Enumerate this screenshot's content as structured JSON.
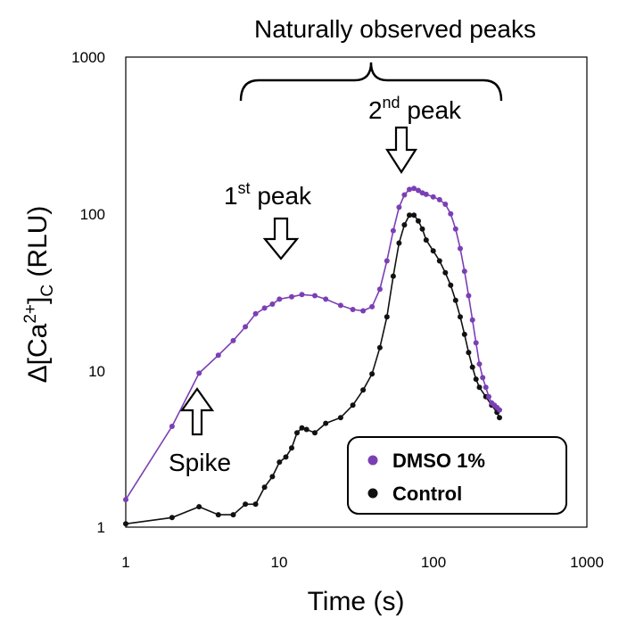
{
  "chart_data": {
    "type": "scatter",
    "title": "",
    "xlabel": "Time (s)",
    "ylabel": "Δ[Ca2+]C (RLU)",
    "ylabel_parts": {
      "delta_bracket": "Δ[Ca",
      "sup": "2+",
      "close": "]",
      "sub": "C",
      "unit": " (RLU)"
    },
    "xscale": "log",
    "yscale": "log",
    "xlim": [
      1,
      1000
    ],
    "ylim": [
      1,
      1000
    ],
    "x_ticks": [
      "1",
      "10",
      "100",
      "1000"
    ],
    "y_ticks": [
      "1",
      "10",
      "100",
      "1000"
    ],
    "grid": false,
    "legend_position": "bottom-right",
    "series": [
      {
        "name": "DMSO 1%",
        "color": "#7b3fb5",
        "points": [
          [
            1,
            1.5
          ],
          [
            2,
            4.4
          ],
          [
            3,
            9.6
          ],
          [
            4,
            12.5
          ],
          [
            5,
            15.5
          ],
          [
            6,
            19
          ],
          [
            7,
            23
          ],
          [
            8,
            25
          ],
          [
            9,
            26.5
          ],
          [
            10,
            28.5
          ],
          [
            12,
            29.5
          ],
          [
            14,
            30.5
          ],
          [
            17,
            30
          ],
          [
            20,
            28.5
          ],
          [
            25,
            26
          ],
          [
            30,
            24.5
          ],
          [
            35,
            24
          ],
          [
            40,
            25.5
          ],
          [
            45,
            33
          ],
          [
            50,
            50
          ],
          [
            55,
            78
          ],
          [
            60,
            110
          ],
          [
            65,
            132
          ],
          [
            70,
            143
          ],
          [
            75,
            145
          ],
          [
            80,
            141
          ],
          [
            85,
            136
          ],
          [
            90,
            133
          ],
          [
            100,
            128
          ],
          [
            110,
            123
          ],
          [
            120,
            115
          ],
          [
            130,
            100
          ],
          [
            140,
            80
          ],
          [
            150,
            60
          ],
          [
            160,
            43
          ],
          [
            170,
            30
          ],
          [
            180,
            21
          ],
          [
            190,
            15
          ],
          [
            200,
            11
          ],
          [
            210,
            9
          ],
          [
            220,
            7.8
          ],
          [
            230,
            6.8
          ],
          [
            240,
            6.2
          ],
          [
            250,
            6
          ],
          [
            260,
            5.8
          ],
          [
            270,
            5.6
          ]
        ]
      },
      {
        "name": "Control",
        "color": "#111111",
        "points": [
          [
            1,
            1.05
          ],
          [
            2,
            1.15
          ],
          [
            3,
            1.35
          ],
          [
            4,
            1.2
          ],
          [
            5,
            1.2
          ],
          [
            6,
            1.4
          ],
          [
            7,
            1.4
          ],
          [
            8,
            1.8
          ],
          [
            9,
            2.1
          ],
          [
            10,
            2.6
          ],
          [
            11,
            2.8
          ],
          [
            12,
            3.2
          ],
          [
            13,
            4
          ],
          [
            14,
            4.3
          ],
          [
            15,
            4.2
          ],
          [
            17,
            4
          ],
          [
            20,
            4.6
          ],
          [
            25,
            5
          ],
          [
            30,
            6
          ],
          [
            35,
            7.5
          ],
          [
            40,
            9.5
          ],
          [
            45,
            14
          ],
          [
            50,
            22
          ],
          [
            55,
            40
          ],
          [
            60,
            65
          ],
          [
            65,
            85
          ],
          [
            70,
            98
          ],
          [
            75,
            98
          ],
          [
            80,
            90
          ],
          [
            85,
            80
          ],
          [
            90,
            68
          ],
          [
            100,
            58
          ],
          [
            110,
            50
          ],
          [
            120,
            42
          ],
          [
            130,
            35
          ],
          [
            140,
            28
          ],
          [
            150,
            22
          ],
          [
            160,
            17
          ],
          [
            170,
            13
          ],
          [
            180,
            10.5
          ],
          [
            190,
            8.8
          ],
          [
            200,
            7.8
          ],
          [
            220,
            6.8
          ],
          [
            240,
            6
          ],
          [
            260,
            5.4
          ],
          [
            270,
            5
          ]
        ]
      }
    ],
    "annotations": {
      "naturally_observed": "Naturally observed peaks",
      "first_peak": {
        "pre": "1",
        "sup": "st",
        "post": " peak"
      },
      "second_peak": {
        "pre": "2",
        "sup": "nd",
        "post": " peak"
      },
      "spike": "Spike"
    }
  }
}
